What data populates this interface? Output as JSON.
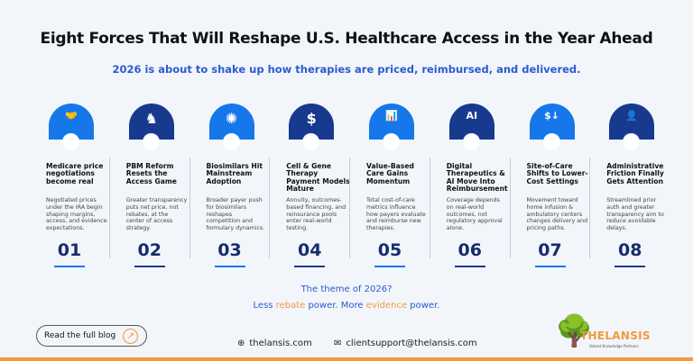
{
  "title": "Eight Forces That Will Reshape U.S. Healthcare Access in the Year Ahead",
  "subtitle": "2026 is about to shake up how therapies are priced, reimbursed, and delivered.",
  "colors": {
    "light_blue": "#1677ea",
    "navy": "#173a8e",
    "accent_orange": "#f39a3a",
    "number": "#152d6b"
  },
  "forces": [
    {
      "num": "01",
      "icon": "handshake-icon",
      "glyph": "🤝",
      "tone": "light",
      "heading": "Medicare price negotiations become real",
      "desc": "Negotiated prices under the IRA begin shaping margins, access, and evidence expectations."
    },
    {
      "num": "02",
      "icon": "chess-knight-icon",
      "glyph": "♞",
      "tone": "dark",
      "heading": "PBM Reform Resets the Access Game",
      "desc": "Greater transparency puts net price, not rebates, at the center of access strategy."
    },
    {
      "num": "03",
      "icon": "growth-idea-icon",
      "glyph": "✺",
      "tone": "light",
      "heading": "Biosimilars Hit Mainstream Adoption",
      "desc": "Broader payer push for biosimilars reshapes competition and formulary dynamics."
    },
    {
      "num": "04",
      "icon": "dollar-document-icon",
      "glyph": "$",
      "tone": "dark",
      "heading": "Cell & Gene Therapy Payment Models Mature",
      "desc": "Annuity, outcomes-based financing, and reinsurance pools enter real-world testing."
    },
    {
      "num": "05",
      "icon": "bar-chart-icon",
      "glyph": "📊",
      "tone": "light",
      "heading": "Value-Based Care Gains Momentum",
      "desc": "Total cost-of-care metrics influence how payers evaluate and reimburse new therapies."
    },
    {
      "num": "06",
      "icon": "ai-chip-icon",
      "glyph": "AI",
      "tone": "dark",
      "heading": "Digital Therapeutics & AI Move Into Reimbursement",
      "desc": "Coverage depends on real-world outcomes, not regulatory approval alone."
    },
    {
      "num": "07",
      "icon": "cost-down-icon",
      "glyph": "$↓",
      "tone": "light",
      "heading": "Site-of-Care Shifts to Lower-Cost Settings",
      "desc": "Movement toward home infusion & ambulatory centers changes delivery and pricing paths."
    },
    {
      "num": "08",
      "icon": "person-network-icon",
      "glyph": "👤",
      "tone": "dark",
      "heading": "Administrative Friction Finally Gets Attention",
      "desc": "Streamlined prior auth and greater transparency aim to reduce avoidable delays."
    }
  ],
  "theme": {
    "line1": "The theme of 2026?",
    "less": "Less ",
    "rebate": "rebate",
    "mid": " power. More ",
    "evidence": "evidence",
    "end": " power."
  },
  "cta": {
    "label": "Read the full blog",
    "arrow": "↗"
  },
  "contact": {
    "website": "thelansis.com",
    "email": "clientsupport@thelansis.com"
  },
  "logo": {
    "name": "THELANSIS",
    "tagline": "Valued Knowledge Partners"
  }
}
